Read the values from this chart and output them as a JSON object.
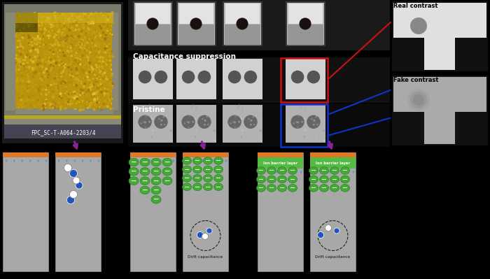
{
  "bg_color": "#000000",
  "orange_color": "#E07828",
  "blue_arrow_color": "#5599CC",
  "green_circle_color": "#44AA33",
  "blue_dot_color": "#2255BB",
  "purple_arrow_color": "#882299",
  "red_box_color": "#CC1111",
  "blue_box_color": "#1133CC",
  "real_contrast_text": "Real contrast",
  "fake_contrast_text": "Fake contrast",
  "cap_suppression_text": "Capacitance suppression",
  "pristine_text": "Pristine",
  "label_text": "FPC_SC-T-A064-2203/4",
  "drift_cap_text": "Drift capacitance",
  "ion_barrier_text": "Ion barrier layer",
  "photo_label_bg": "#444455"
}
